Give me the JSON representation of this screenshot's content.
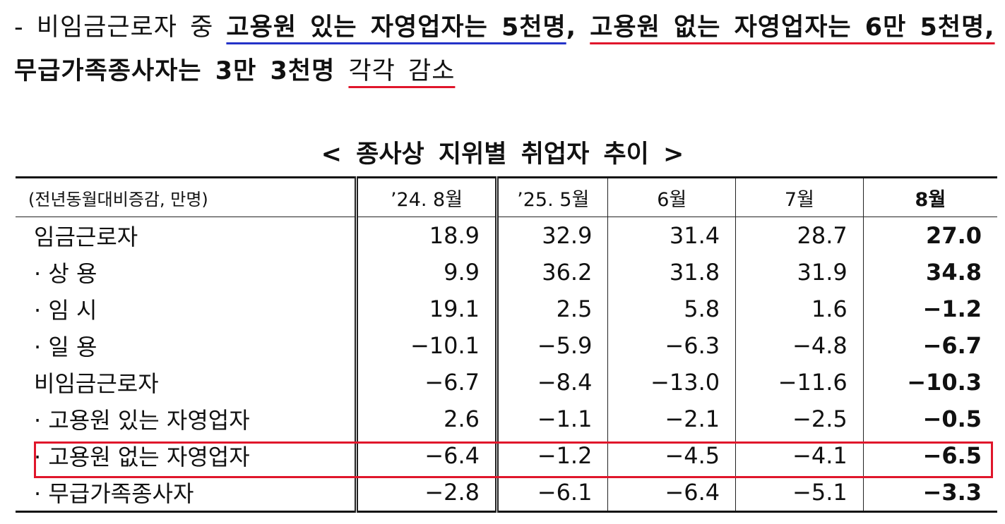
{
  "paragraph": {
    "segments": [
      "- 비임금근로자 중 ",
      "고용원 있는 자영업자는 5천명",
      ", ",
      "고용원 없는 자영업자는 6만 5천명,",
      " 무급가족종사자는 3만 3천명 ",
      "각각 감소"
    ]
  },
  "table": {
    "title": "< 종사상 지위별 취업자 추이 >",
    "header": [
      "(전년동월대비증감, 만명)",
      "’24. 8월",
      "’25. 5월",
      "6월",
      "7월",
      "8월"
    ],
    "rows": [
      [
        "임금근로자",
        "18.9",
        "32.9",
        "31.4",
        "28.7",
        "27.0"
      ],
      [
        "· 상  용",
        "9.9",
        "36.2",
        "31.8",
        "31.9",
        "34.8"
      ],
      [
        "· 임  시",
        "19.1",
        "2.5",
        "5.8",
        "1.6",
        "−1.2"
      ],
      [
        "· 일  용",
        "−10.1",
        "−5.9",
        "−6.3",
        "−4.8",
        "−6.7"
      ],
      [
        "비임금근로자",
        "−6.7",
        "−8.4",
        "−13.0",
        "−11.6",
        "−10.3"
      ],
      [
        "· 고용원 있는 자영업자",
        "2.6",
        "−1.1",
        "−2.1",
        "−2.5",
        "−0.5"
      ],
      [
        "· 고용원 없는 자영업자",
        "−6.4",
        "−1.2",
        "−4.5",
        "−4.1",
        "−6.5"
      ],
      [
        "· 무급가족종사자",
        "−2.8",
        "−6.1",
        "−6.4",
        "−5.1",
        "−3.3"
      ]
    ]
  }
}
